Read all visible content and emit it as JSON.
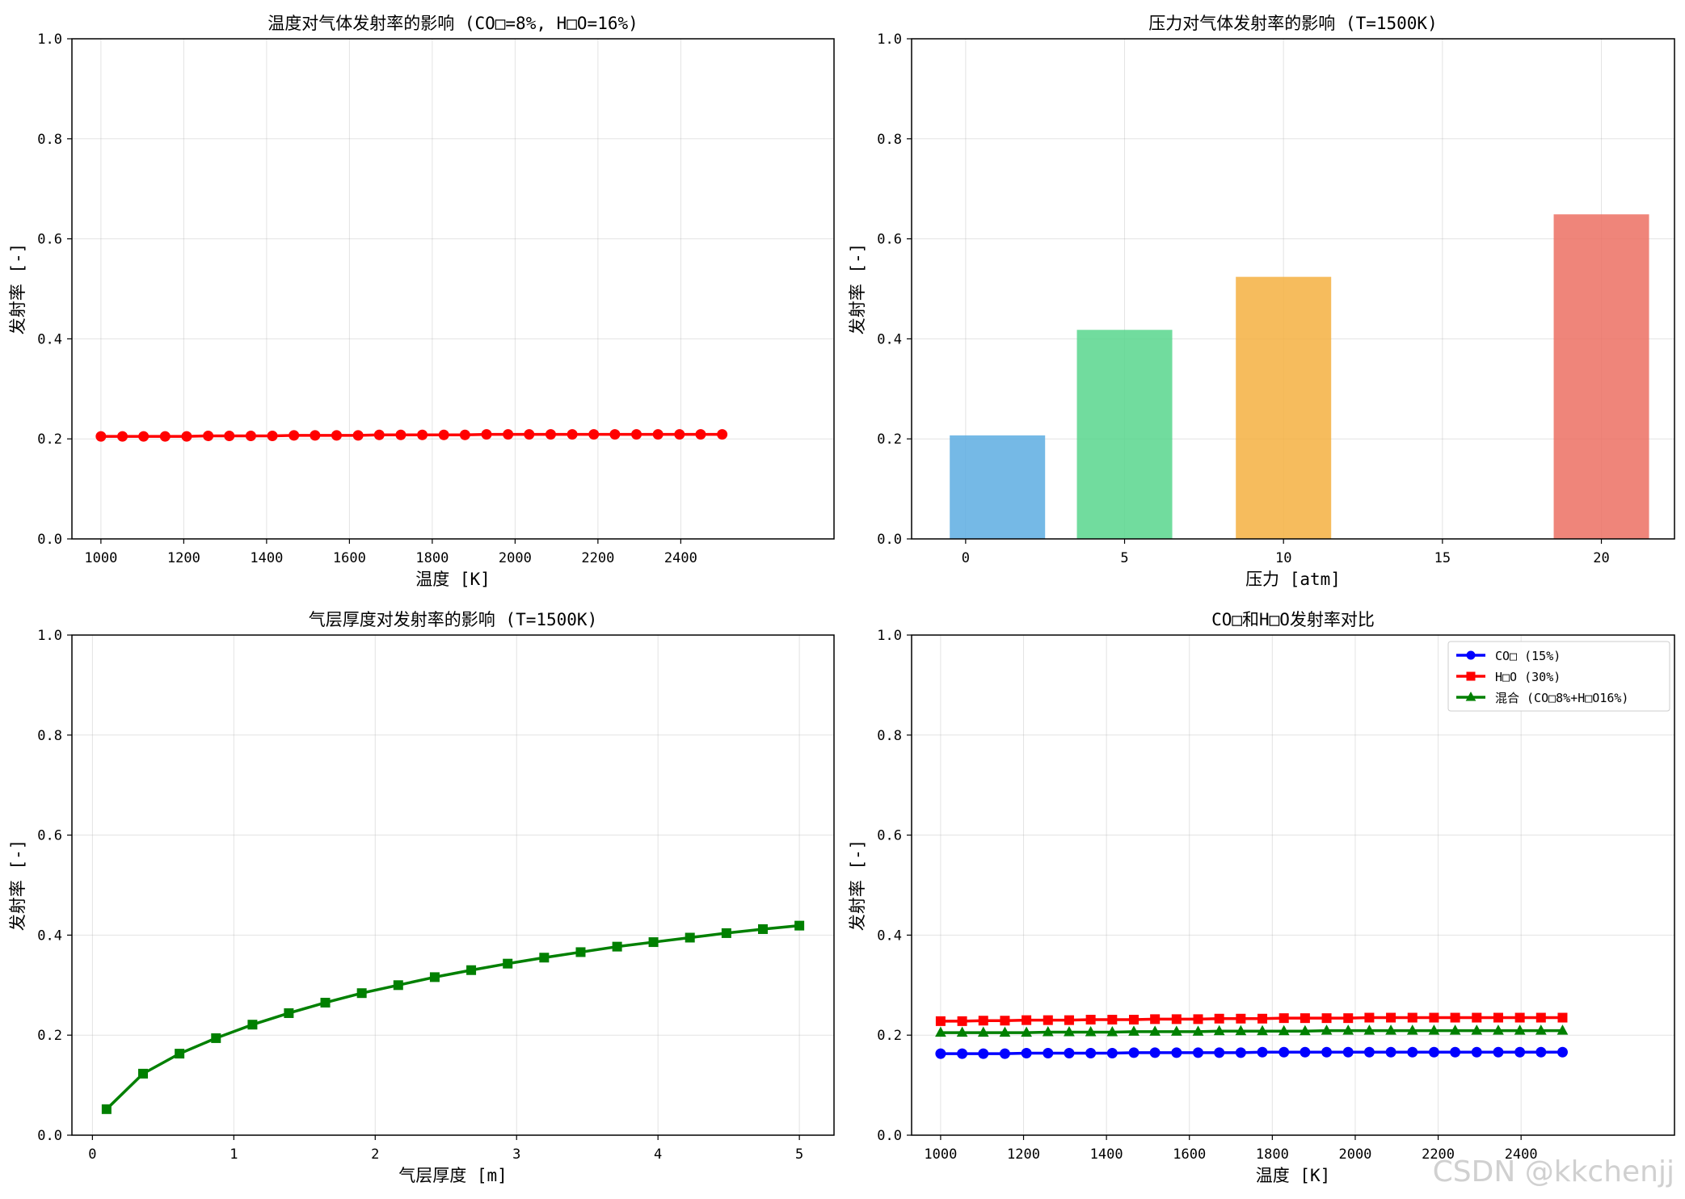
{
  "chart_data": [
    {
      "type": "line",
      "title": "温度对气体发射率的影响 (CO□=8%, H□O=16%)",
      "xlabel": "温度 [K]",
      "ylabel": "发射率 [-]",
      "xlim": [
        930,
        2770
      ],
      "ylim": [
        0,
        1
      ],
      "xticks": [
        1000,
        1200,
        1400,
        1600,
        1800,
        2000,
        2200,
        2400
      ],
      "yticks": [
        0.0,
        0.2,
        0.4,
        0.6,
        0.8,
        1.0
      ],
      "ytick_labels": [
        "0.0",
        "0.2",
        "0.4",
        "0.6",
        "0.8",
        "1.0"
      ],
      "grid": true,
      "series": [
        {
          "color": "#ff0000",
          "marker": "circle",
          "x": [
            1000,
            1052,
            1103,
            1155,
            1207,
            1259,
            1310,
            1362,
            1414,
            1466,
            1517,
            1569,
            1621,
            1672,
            1724,
            1776,
            1828,
            1879,
            1931,
            1983,
            2034,
            2086,
            2138,
            2190,
            2241,
            2293,
            2345,
            2397,
            2448,
            2500
          ],
          "values": [
            0.205,
            0.205,
            0.205,
            0.205,
            0.205,
            0.206,
            0.206,
            0.206,
            0.206,
            0.207,
            0.207,
            0.207,
            0.207,
            0.208,
            0.208,
            0.208,
            0.208,
            0.208,
            0.209,
            0.209,
            0.209,
            0.209,
            0.209,
            0.209,
            0.209,
            0.209,
            0.209,
            0.209,
            0.209,
            0.209
          ]
        }
      ]
    },
    {
      "type": "bar",
      "title": "压力对气体发射率的影响 (T=1500K)",
      "xlabel": "压力 [atm]",
      "ylabel": "发射率 [-]",
      "xlim": [
        -1.7,
        22.3
      ],
      "ylim": [
        0,
        1
      ],
      "xticks": [
        0,
        5,
        10,
        15,
        20
      ],
      "yticks": [
        0.0,
        0.2,
        0.4,
        0.6,
        0.8,
        1.0
      ],
      "ytick_labels": [
        "0.0",
        "0.2",
        "0.4",
        "0.6",
        "0.8",
        "1.0"
      ],
      "grid": true,
      "bar_width": 3,
      "bars": [
        {
          "x": 1,
          "value": 0.207,
          "color": "#5dade2"
        },
        {
          "x": 5,
          "value": 0.418,
          "color": "#58d68d"
        },
        {
          "x": 10,
          "value": 0.524,
          "color": "#f5b041"
        },
        {
          "x": 20,
          "value": 0.649,
          "color": "#ec7063"
        }
      ]
    },
    {
      "type": "line",
      "title": "气层厚度对发射率的影响 (T=1500K)",
      "xlabel": "气层厚度 [m]",
      "ylabel": "发射率 [-]",
      "xlim": [
        -0.145,
        5.245
      ],
      "ylim": [
        0,
        1
      ],
      "xticks": [
        0,
        1,
        2,
        3,
        4,
        5
      ],
      "yticks": [
        0.0,
        0.2,
        0.4,
        0.6,
        0.8,
        1.0
      ],
      "ytick_labels": [
        "0.0",
        "0.2",
        "0.4",
        "0.6",
        "0.8",
        "1.0"
      ],
      "grid": true,
      "series": [
        {
          "color": "#008000",
          "marker": "square",
          "x": [
            0.1,
            0.358,
            0.616,
            0.874,
            1.132,
            1.389,
            1.647,
            1.905,
            2.163,
            2.421,
            2.679,
            2.937,
            3.195,
            3.453,
            3.711,
            3.968,
            4.226,
            4.484,
            4.742,
            5.0
          ],
          "values": [
            0.052,
            0.123,
            0.163,
            0.194,
            0.221,
            0.244,
            0.265,
            0.284,
            0.3,
            0.316,
            0.33,
            0.343,
            0.355,
            0.366,
            0.377,
            0.386,
            0.395,
            0.404,
            0.412,
            0.419
          ]
        }
      ]
    },
    {
      "type": "line",
      "title": "CO□和H□O发射率对比",
      "xlabel": "温度 [K]",
      "ylabel": "发射率 [-]",
      "xlim": [
        930,
        2770
      ],
      "ylim": [
        0,
        1
      ],
      "xticks": [
        1000,
        1200,
        1400,
        1600,
        1800,
        2000,
        2200,
        2400
      ],
      "yticks": [
        0.0,
        0.2,
        0.4,
        0.6,
        0.8,
        1.0
      ],
      "ytick_labels": [
        "0.0",
        "0.2",
        "0.4",
        "0.6",
        "0.8",
        "1.0"
      ],
      "grid": true,
      "legend": "top-right",
      "series": [
        {
          "name": "CO□ (15%)",
          "color": "#0000ff",
          "marker": "circle",
          "x": [
            1000,
            1052,
            1103,
            1155,
            1207,
            1259,
            1310,
            1362,
            1414,
            1466,
            1517,
            1569,
            1621,
            1672,
            1724,
            1776,
            1828,
            1879,
            1931,
            1983,
            2034,
            2086,
            2138,
            2190,
            2241,
            2293,
            2345,
            2397,
            2448,
            2500
          ],
          "values": [
            0.163,
            0.163,
            0.163,
            0.163,
            0.164,
            0.164,
            0.164,
            0.164,
            0.164,
            0.165,
            0.165,
            0.165,
            0.165,
            0.165,
            0.165,
            0.166,
            0.166,
            0.166,
            0.166,
            0.166,
            0.166,
            0.166,
            0.166,
            0.166,
            0.166,
            0.166,
            0.166,
            0.166,
            0.166,
            0.166
          ]
        },
        {
          "name": "H□O (30%)",
          "color": "#ff0000",
          "marker": "square",
          "x": [
            1000,
            1052,
            1103,
            1155,
            1207,
            1259,
            1310,
            1362,
            1414,
            1466,
            1517,
            1569,
            1621,
            1672,
            1724,
            1776,
            1828,
            1879,
            1931,
            1983,
            2034,
            2086,
            2138,
            2190,
            2241,
            2293,
            2345,
            2397,
            2448,
            2500
          ],
          "values": [
            0.228,
            0.228,
            0.229,
            0.229,
            0.23,
            0.23,
            0.23,
            0.231,
            0.231,
            0.231,
            0.232,
            0.232,
            0.232,
            0.233,
            0.233,
            0.233,
            0.234,
            0.234,
            0.234,
            0.234,
            0.235,
            0.235,
            0.235,
            0.235,
            0.235,
            0.235,
            0.235,
            0.235,
            0.235,
            0.235
          ]
        },
        {
          "name": "混合 (CO□8%+H□O16%)",
          "color": "#008000",
          "marker": "triangle",
          "x": [
            1000,
            1052,
            1103,
            1155,
            1207,
            1259,
            1310,
            1362,
            1414,
            1466,
            1517,
            1569,
            1621,
            1672,
            1724,
            1776,
            1828,
            1879,
            1931,
            1983,
            2034,
            2086,
            2138,
            2190,
            2241,
            2293,
            2345,
            2397,
            2448,
            2500
          ],
          "values": [
            0.205,
            0.205,
            0.205,
            0.205,
            0.205,
            0.206,
            0.206,
            0.206,
            0.206,
            0.207,
            0.207,
            0.207,
            0.207,
            0.208,
            0.208,
            0.208,
            0.208,
            0.208,
            0.209,
            0.209,
            0.209,
            0.209,
            0.209,
            0.209,
            0.209,
            0.209,
            0.209,
            0.209,
            0.209,
            0.209
          ]
        }
      ]
    }
  ],
  "watermark": "CSDN @kkchenjj"
}
